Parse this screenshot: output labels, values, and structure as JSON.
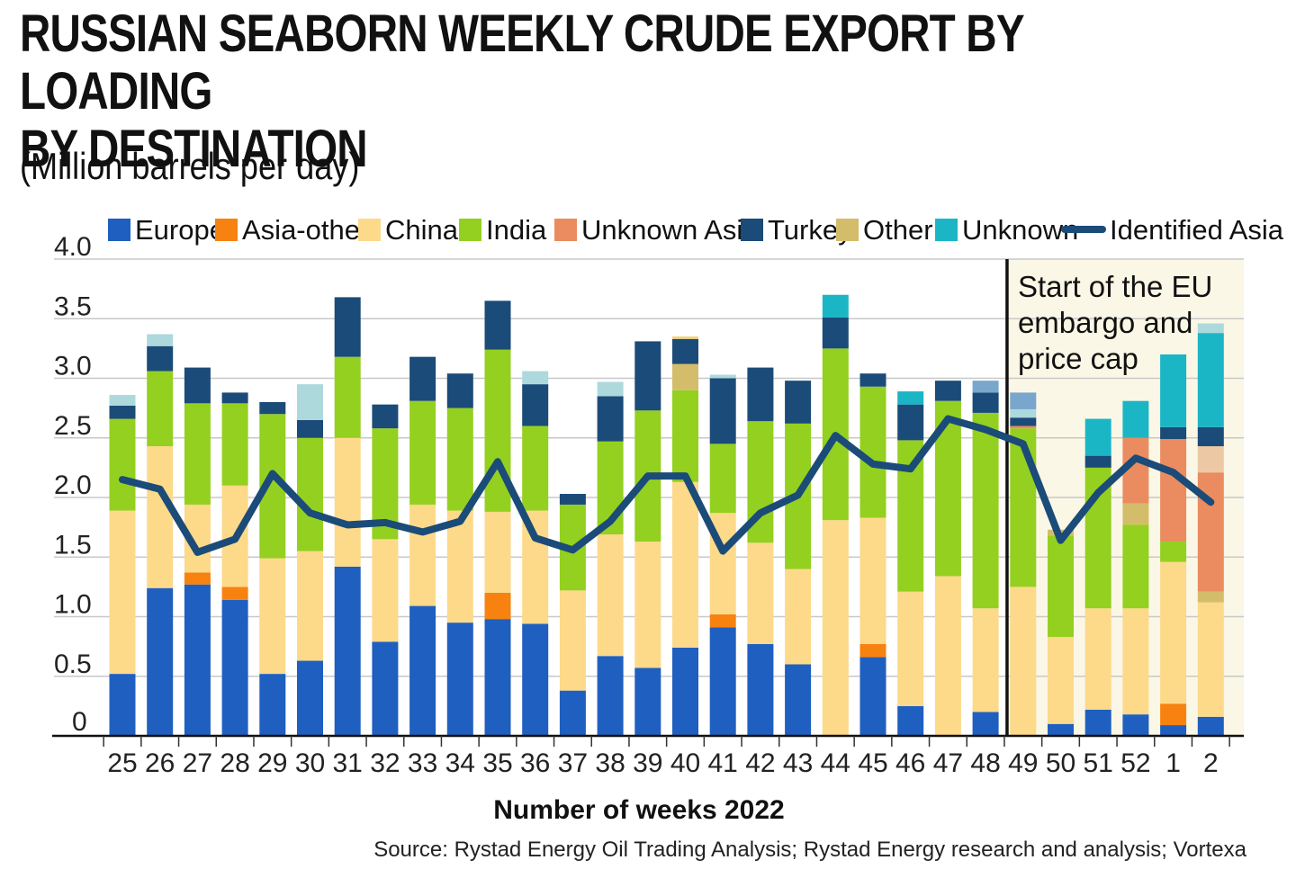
{
  "header": {
    "title_line1": "RUSSIAN SEABORN WEEKLY CRUDE EXPORT BY LOADING",
    "title_line2": "BY DESTINATION",
    "subtitle": "(Million barrels per day)"
  },
  "footer": {
    "xlabel": "Number of weeks 2022",
    "source": "Source: Rystad Energy Oil Trading Analysis; Rystad Energy research and analysis; Vortexa"
  },
  "colors": {
    "Europe": "#1f5fbf",
    "Asia-other": "#f7820f",
    "China": "#fdd98a",
    "India": "#94d01f",
    "Unknown Asia": "#ea8c5f",
    "Turkey": "#1b4b78",
    "Other": "#d4bd6a",
    "Unknown": "#1bb6c6",
    "Other-light": "#f0d27a",
    "Unknown Asia-light": "#ecc9a4",
    "Unknown-light": "#add9dd",
    "Unknown-blue": "#79a6cc",
    "Identified Asia": "#1b4b78",
    "embargo_shade": "#fbf7e6"
  },
  "chart_data": {
    "type": "bar",
    "stacked": true,
    "title": "RUSSIAN SEABORN WEEKLY CRUDE EXPORT BY LOADING BY DESTINATION",
    "subtitle": "(Million barrels per day)",
    "xlabel": "Number of weeks 2022",
    "ylabel": "",
    "ylim": [
      0,
      4.0
    ],
    "yticks": [
      "0",
      "0.5",
      "1.0",
      "1.5",
      "2.0",
      "2.5",
      "3.0",
      "3.5",
      "4.0"
    ],
    "grid": true,
    "legend_position": "top",
    "legend": [
      "Europe",
      "Asia-other",
      "China",
      "India",
      "Unknown Asia",
      "Turkey",
      "Other",
      "Unknown",
      "Identified Asia"
    ],
    "categories": [
      "25",
      "26",
      "27",
      "28",
      "29",
      "30",
      "31",
      "32",
      "33",
      "34",
      "35",
      "36",
      "37",
      "38",
      "39",
      "40",
      "41",
      "42",
      "43",
      "44",
      "45",
      "46",
      "47",
      "48",
      "49",
      "50",
      "51",
      "52",
      "1",
      "2"
    ],
    "annotation": {
      "text_lines": [
        "Start of the EU",
        "embargo and",
        "price cap"
      ],
      "at_category": "49"
    },
    "series": [
      {
        "name": "Europe",
        "values": [
          0.52,
          1.24,
          1.27,
          1.14,
          0.52,
          0.63,
          1.42,
          0.79,
          1.09,
          0.95,
          0.98,
          0.94,
          0.38,
          0.67,
          0.57,
          0.74,
          0.91,
          0.77,
          0.6,
          0,
          0.66,
          0.25,
          0,
          0.2,
          0,
          0.1,
          0.22,
          0.18,
          0.09,
          0.16
        ]
      },
      {
        "name": "Asia-other",
        "values": [
          0,
          0,
          0.1,
          0.11,
          0,
          0,
          0,
          0,
          0,
          0,
          0.22,
          0,
          0,
          0,
          0,
          0,
          0.11,
          0,
          0,
          0,
          0.11,
          0,
          0,
          0,
          0,
          0,
          0,
          0,
          0.18,
          0
        ]
      },
      {
        "name": "China",
        "values": [
          1.37,
          1.19,
          0.57,
          0.85,
          0.97,
          0.92,
          1.08,
          0.86,
          0.85,
          0.94,
          0.68,
          0.95,
          0.84,
          1.02,
          1.06,
          1.39,
          0.85,
          0.85,
          0.8,
          1.81,
          1.06,
          0.96,
          1.34,
          0.87,
          1.25,
          0.73,
          0.85,
          0.89,
          1.19,
          0.96
        ]
      },
      {
        "name": "India",
        "values": [
          0.77,
          0.63,
          0.85,
          0.69,
          1.21,
          0.95,
          0.68,
          0.93,
          0.87,
          0.86,
          1.36,
          0.71,
          0.72,
          0.78,
          1.1,
          0.77,
          0.58,
          1.02,
          1.22,
          1.44,
          1.1,
          1.27,
          1.47,
          1.64,
          1.33,
          0.85,
          1.18,
          0.7,
          0.17,
          0
        ]
      },
      {
        "name": "Other",
        "values": [
          0,
          0,
          0,
          0,
          0,
          0,
          0,
          0,
          0,
          0,
          0,
          0,
          0,
          0,
          0,
          0.22,
          0,
          0,
          0,
          0,
          0,
          0,
          0,
          0,
          0,
          0.05,
          0,
          0.18,
          0,
          0.09
        ]
      },
      {
        "name": "Unknown Asia",
        "values": [
          0,
          0,
          0,
          0,
          0,
          0,
          0,
          0,
          0,
          0,
          0,
          0,
          0,
          0,
          0,
          0,
          0,
          0,
          0,
          0,
          0,
          0,
          0,
          0,
          0.02,
          0,
          0,
          0.55,
          0.86,
          1.0
        ]
      },
      {
        "name": "Unknown Asia-light",
        "values": [
          0,
          0,
          0,
          0,
          0,
          0,
          0,
          0,
          0,
          0,
          0,
          0,
          0,
          0,
          0,
          0,
          0,
          0,
          0,
          0,
          0,
          0,
          0,
          0,
          0,
          0,
          0,
          0,
          0,
          0.22
        ]
      },
      {
        "name": "Turkey",
        "values": [
          0.11,
          0.21,
          0.3,
          0.09,
          0.1,
          0.15,
          0.5,
          0.2,
          0.37,
          0.29,
          0.41,
          0.35,
          0.09,
          0.38,
          0.58,
          0.21,
          0.55,
          0.45,
          0.36,
          0.26,
          0.11,
          0.3,
          0.17,
          0.17,
          0.07,
          0,
          0.1,
          0,
          0.1,
          0.16
        ]
      },
      {
        "name": "Other-light",
        "values": [
          0,
          0,
          0,
          0,
          0,
          0,
          0,
          0,
          0,
          0,
          0,
          0,
          0,
          0,
          0,
          0.02,
          0,
          0,
          0,
          0,
          0,
          0,
          0,
          0,
          0,
          0,
          0,
          0,
          0,
          0
        ]
      },
      {
        "name": "Unknown",
        "values": [
          0,
          0,
          0,
          0,
          0,
          0,
          0,
          0,
          0,
          0,
          0,
          0,
          0,
          0,
          0,
          0,
          0,
          0,
          0,
          0.19,
          0,
          0.11,
          0,
          0,
          0,
          0,
          0.31,
          0.31,
          0.61,
          0.79
        ]
      },
      {
        "name": "Unknown-light",
        "values": [
          0.09,
          0.1,
          0,
          0,
          0,
          0.3,
          0,
          0,
          0,
          0,
          0,
          0.11,
          0,
          0.12,
          0,
          0,
          0.03,
          0,
          0,
          0,
          0,
          0,
          0,
          0,
          0.07,
          0,
          0,
          0,
          0,
          0.08
        ]
      },
      {
        "name": "Unknown-blue",
        "values": [
          0,
          0,
          0,
          0,
          0,
          0,
          0,
          0,
          0,
          0,
          0,
          0,
          0,
          0,
          0,
          0,
          0,
          0,
          0,
          0,
          0,
          0,
          0,
          0.1,
          0.14,
          0,
          0,
          0,
          0,
          0
        ]
      }
    ],
    "line": {
      "name": "Identified Asia",
      "values": [
        2.15,
        2.07,
        1.54,
        1.65,
        2.2,
        1.87,
        1.77,
        1.79,
        1.71,
        1.8,
        2.3,
        1.66,
        1.56,
        1.8,
        2.18,
        2.18,
        1.55,
        1.87,
        2.02,
        2.52,
        2.28,
        2.24,
        2.66,
        2.57,
        2.45,
        1.64,
        2.04,
        2.33,
        2.21,
        1.96
      ]
    }
  }
}
